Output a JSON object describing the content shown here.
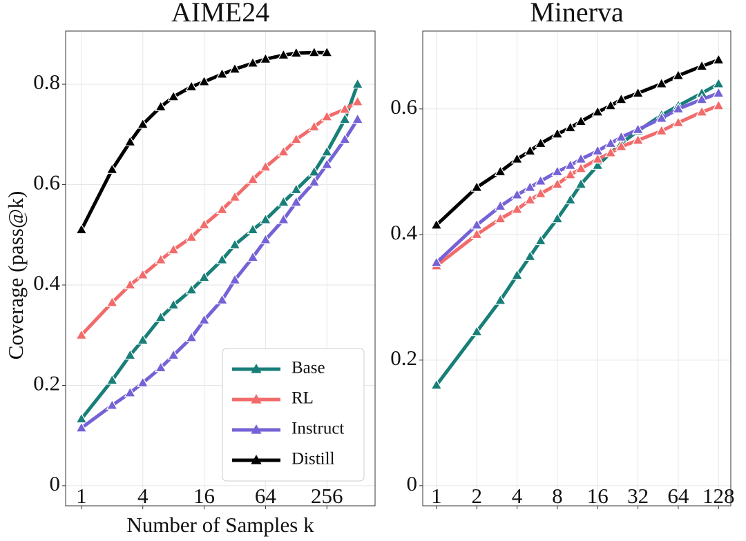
{
  "chart_data": [
    {
      "type": "line",
      "title": "AIME24",
      "ylabel": "Coverage (pass@k)",
      "xlabel": "Number of Samples k",
      "xscale": "log",
      "xlim": [
        0.7,
        760
      ],
      "ylim": [
        -0.04,
        0.906
      ],
      "xticks": [
        1,
        4,
        16,
        64,
        256
      ],
      "yticks": [
        0,
        0.2,
        0.4,
        0.6,
        0.8
      ],
      "grid": true,
      "legend": "lower right",
      "x": [
        1,
        2,
        3,
        4,
        6,
        8,
        12,
        16,
        24,
        32,
        48,
        64,
        96,
        128,
        192,
        256,
        384,
        512
      ],
      "series": [
        {
          "name": "Base",
          "color": "#187f78",
          "values": [
            0.133,
            0.21,
            0.26,
            0.29,
            0.335,
            0.36,
            0.39,
            0.415,
            0.45,
            0.48,
            0.51,
            0.53,
            0.565,
            0.59,
            0.625,
            0.665,
            0.73,
            0.8
          ]
        },
        {
          "name": "RL",
          "color": "#f26b6b",
          "values": [
            0.3,
            0.365,
            0.4,
            0.42,
            0.45,
            0.47,
            0.495,
            0.52,
            0.55,
            0.575,
            0.61,
            0.635,
            0.665,
            0.69,
            0.715,
            0.735,
            0.75,
            0.765
          ]
        },
        {
          "name": "Instruct",
          "color": "#7462d6",
          "values": [
            0.115,
            0.16,
            0.185,
            0.205,
            0.235,
            0.26,
            0.295,
            0.33,
            0.37,
            0.41,
            0.455,
            0.49,
            0.53,
            0.565,
            0.605,
            0.64,
            0.69,
            0.73
          ]
        },
        {
          "name": "Distill",
          "color": "#000000",
          "values": [
            0.51,
            0.63,
            0.685,
            0.72,
            0.755,
            0.775,
            0.795,
            0.805,
            0.82,
            0.83,
            0.842,
            0.85,
            0.858,
            0.862,
            0.863,
            0.863,
            null,
            null
          ]
        }
      ]
    },
    {
      "type": "line",
      "title": "Minerva",
      "xscale": "log",
      "xlim": [
        0.79,
        158
      ],
      "ylim": [
        -0.032,
        0.724
      ],
      "xticks": [
        1,
        2,
        4,
        8,
        16,
        32,
        64,
        128
      ],
      "yticks": [
        0,
        0.2,
        0.4,
        0.6
      ],
      "grid": true,
      "x": [
        1,
        2,
        3,
        4,
        5,
        6,
        8,
        10,
        12,
        16,
        20,
        24,
        32,
        48,
        64,
        96,
        128
      ],
      "series": [
        {
          "name": "Base",
          "color": "#187f78",
          "values": [
            0.16,
            0.245,
            0.295,
            0.335,
            0.365,
            0.39,
            0.425,
            0.455,
            0.48,
            0.51,
            0.53,
            0.545,
            0.565,
            0.59,
            0.605,
            0.625,
            0.64
          ]
        },
        {
          "name": "RL",
          "color": "#f26b6b",
          "values": [
            0.35,
            0.4,
            0.425,
            0.44,
            0.455,
            0.465,
            0.48,
            0.495,
            0.505,
            0.52,
            0.53,
            0.54,
            0.55,
            0.565,
            0.578,
            0.595,
            0.605
          ]
        },
        {
          "name": "Instruct",
          "color": "#7462d6",
          "values": [
            0.355,
            0.415,
            0.445,
            0.463,
            0.475,
            0.485,
            0.5,
            0.51,
            0.52,
            0.533,
            0.545,
            0.555,
            0.567,
            0.585,
            0.6,
            0.615,
            0.625
          ]
        },
        {
          "name": "Distill",
          "color": "#000000",
          "values": [
            0.415,
            0.475,
            0.5,
            0.52,
            0.533,
            0.545,
            0.56,
            0.57,
            0.58,
            0.595,
            0.605,
            0.615,
            0.625,
            0.64,
            0.653,
            0.668,
            0.678
          ]
        }
      ]
    }
  ]
}
